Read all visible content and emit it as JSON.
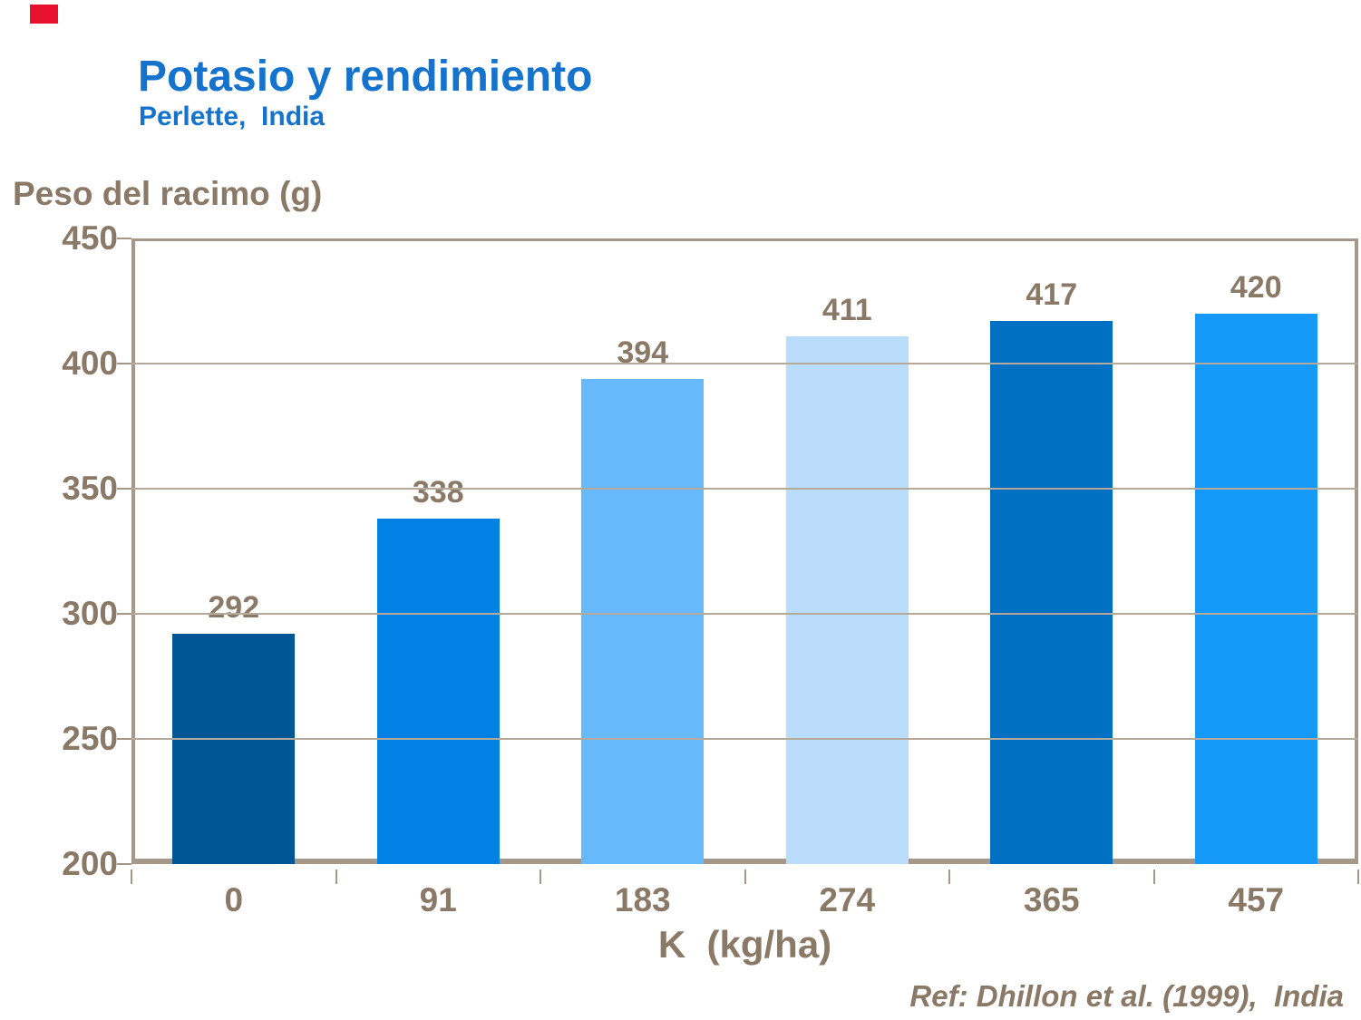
{
  "header": {
    "title": "Potasio y rendimiento",
    "subtitle": "Perlette,  India"
  },
  "reference": {
    "text": "Ref: Dhillon et al. (1999),  India"
  },
  "colors": {
    "background": "#FFFFFF",
    "title_blue": "#1573CE",
    "text_taupe": "#8A7967",
    "axis_line": "#A59889",
    "gridline": "#B5A99C",
    "corner_red": "#E8112D",
    "bar_colors": [
      "#005695",
      "#0081E3",
      "#66BAFB",
      "#BADCFB",
      "#0071C2",
      "#169AFA"
    ]
  },
  "chart_data": {
    "type": "bar",
    "title": "Potasio y rendimiento",
    "subtitle": "Perlette,  India",
    "categories": [
      "0",
      "91",
      "183",
      "274",
      "365",
      "457"
    ],
    "values": [
      292,
      338,
      394,
      411,
      417,
      420
    ],
    "xlabel": "K  (kg/ha)",
    "ylabel": "Peso del racimo (g)",
    "ylim": [
      200,
      450
    ],
    "yticks": [
      450,
      400,
      350,
      300,
      250,
      200
    ],
    "grid": "horizontal",
    "legend": "none",
    "bar_width_fraction": 0.6
  }
}
